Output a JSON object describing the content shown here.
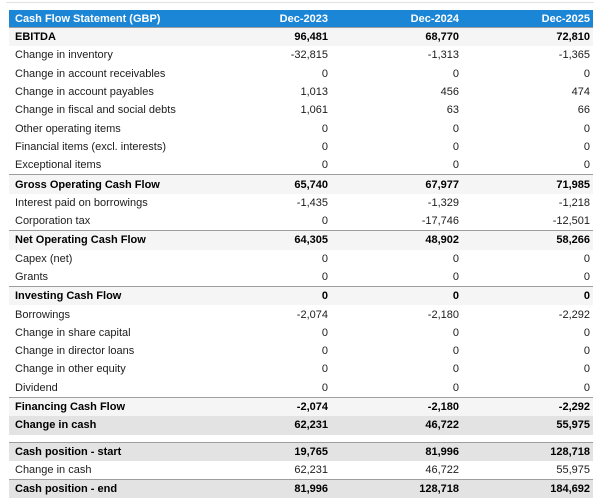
{
  "colors": {
    "header_bg": "#1b85d6",
    "header_text": "#ffffff",
    "subtotal_row_bg": "#f5f5f5",
    "total_row_bg": "#e3e3e3",
    "row_rule": "#9e9e9e"
  },
  "table": {
    "title": "Cash Flow Statement (GBP)",
    "columns": [
      "Dec-2023",
      "Dec-2024",
      "Dec-2025"
    ],
    "rows": [
      {
        "label": "EBITDA",
        "values": [
          "96,481",
          "68,770",
          "72,810"
        ],
        "style": "subtotal"
      },
      {
        "label": "Change in inventory",
        "values": [
          "-32,815",
          "-1,313",
          "-1,365"
        ],
        "style": "normal"
      },
      {
        "label": "Change in account receivables",
        "values": [
          "0",
          "0",
          "0"
        ],
        "style": "normal"
      },
      {
        "label": "Change in account payables",
        "values": [
          "1,013",
          "456",
          "474"
        ],
        "style": "normal"
      },
      {
        "label": "Change in fiscal and social debts",
        "values": [
          "1,061",
          "63",
          "66"
        ],
        "style": "normal"
      },
      {
        "label": "Other operating items",
        "values": [
          "0",
          "0",
          "0"
        ],
        "style": "normal"
      },
      {
        "label": "Financial items (excl. interests)",
        "values": [
          "0",
          "0",
          "0"
        ],
        "style": "normal"
      },
      {
        "label": "Exceptional items",
        "values": [
          "0",
          "0",
          "0"
        ],
        "style": "normal"
      },
      {
        "label": "Gross Operating Cash Flow",
        "values": [
          "65,740",
          "67,977",
          "71,985"
        ],
        "style": "subtotal"
      },
      {
        "label": "Interest paid on borrowings",
        "values": [
          "-1,435",
          "-1,329",
          "-1,218"
        ],
        "style": "normal"
      },
      {
        "label": "Corporation tax",
        "values": [
          "0",
          "-17,746",
          "-12,501"
        ],
        "style": "normal"
      },
      {
        "label": "Net Operating Cash Flow",
        "values": [
          "64,305",
          "48,902",
          "58,266"
        ],
        "style": "subtotal"
      },
      {
        "label": "Capex (net)",
        "values": [
          "0",
          "0",
          "0"
        ],
        "style": "normal"
      },
      {
        "label": "Grants",
        "values": [
          "0",
          "0",
          "0"
        ],
        "style": "normal"
      },
      {
        "label": "Investing Cash Flow",
        "values": [
          "0",
          "0",
          "0"
        ],
        "style": "subtotal"
      },
      {
        "label": "Borrowings",
        "values": [
          "-2,074",
          "-2,180",
          "-2,292"
        ],
        "style": "normal"
      },
      {
        "label": "Change in share capital",
        "values": [
          "0",
          "0",
          "0"
        ],
        "style": "normal"
      },
      {
        "label": "Change in director loans",
        "values": [
          "0",
          "0",
          "0"
        ],
        "style": "normal"
      },
      {
        "label": "Change in other equity",
        "values": [
          "0",
          "0",
          "0"
        ],
        "style": "normal"
      },
      {
        "label": "Dividend",
        "values": [
          "0",
          "0",
          "0"
        ],
        "style": "normal"
      },
      {
        "label": "Financing Cash Flow",
        "values": [
          "-2,074",
          "-2,180",
          "-2,292"
        ],
        "style": "subtotal"
      },
      {
        "label": "Change in cash",
        "values": [
          "62,231",
          "46,722",
          "55,975"
        ],
        "style": "grand"
      },
      {
        "type": "separator"
      },
      {
        "label": "Cash position - start",
        "values": [
          "19,765",
          "81,996",
          "128,718"
        ],
        "style": "grand-line"
      },
      {
        "label": "Change in cash",
        "values": [
          "62,231",
          "46,722",
          "55,975"
        ],
        "style": "normal"
      },
      {
        "label": "Cash position - end",
        "values": [
          "81,996",
          "128,718",
          "184,692"
        ],
        "style": "grand-line"
      }
    ]
  }
}
